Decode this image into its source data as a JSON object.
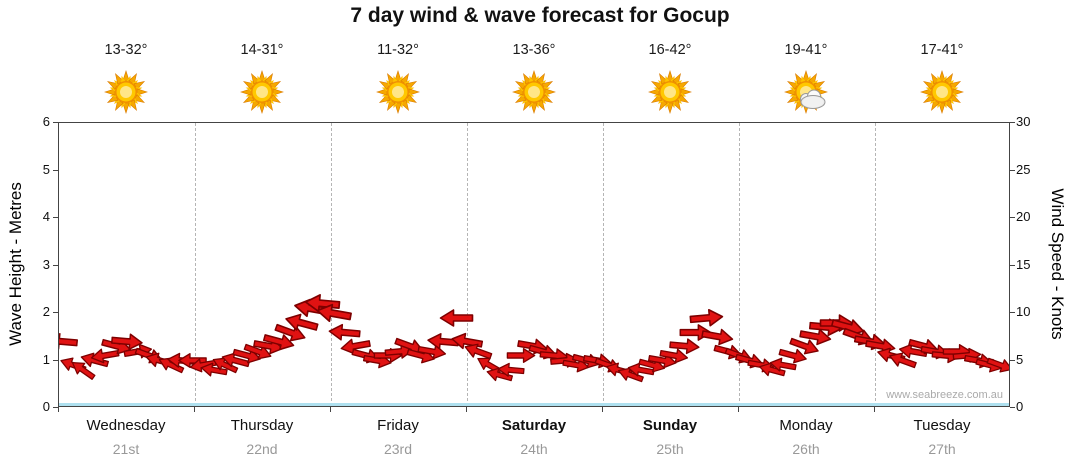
{
  "title": "7 day wind & wave forecast for Gocup",
  "watermark": "www.seabreeze.com.au",
  "left_axis": {
    "label": "Wave Height - Metres",
    "min": 0,
    "max": 6,
    "ticks": [
      0,
      1,
      2,
      3,
      4,
      5,
      6
    ]
  },
  "right_axis": {
    "label": "Wind Speed - Knots",
    "min": 0,
    "max": 30,
    "ticks": [
      0,
      5,
      10,
      15,
      20,
      25,
      30
    ]
  },
  "days": [
    {
      "name": "Wednesday",
      "date": "21st",
      "temp": "13-32°",
      "icon": "sunny",
      "bold": false
    },
    {
      "name": "Thursday",
      "date": "22nd",
      "temp": "14-31°",
      "icon": "sunny",
      "bold": false
    },
    {
      "name": "Friday",
      "date": "23rd",
      "temp": "11-32°",
      "icon": "sunny",
      "bold": false
    },
    {
      "name": "Saturday",
      "date": "24th",
      "temp": "13-36°",
      "icon": "sunny",
      "bold": true
    },
    {
      "name": "Sunday",
      "date": "25th",
      "temp": "16-42°",
      "icon": "sunny",
      "bold": true
    },
    {
      "name": "Monday",
      "date": "26th",
      "temp": "19-41°",
      "icon": "partly-cloudy",
      "bold": false
    },
    {
      "name": "Tuesday",
      "date": "27th",
      "temp": "17-41°",
      "icon": "sunny",
      "bold": false
    }
  ],
  "chart_data": {
    "type": "wind-arrow-time-series",
    "x_unit": "days (0 = start of Wednesday, 7 = end of Tuesday)",
    "y_unit_right": "knots",
    "y_unit_left_equivalent": "metres (left axis 0-6 maps to right axis 0-30)",
    "arrow_fill": "#e01212",
    "arrow_stroke": "#7d0000",
    "grid": "vertical dashed day separators",
    "legend": "none",
    "points_format": "[time_days, wind_speed_knots, direction_deg (0 = pointing right)]",
    "points": [
      [
        0.02,
        7,
        185
      ],
      [
        0.1,
        4.5,
        200
      ],
      [
        0.18,
        4,
        215
      ],
      [
        0.26,
        5,
        195
      ],
      [
        0.34,
        5.5,
        170
      ],
      [
        0.42,
        6.5,
        15
      ],
      [
        0.5,
        7,
        5
      ],
      [
        0.58,
        6,
        350
      ],
      [
        0.66,
        5.5,
        20
      ],
      [
        0.74,
        5,
        195
      ],
      [
        0.82,
        4.5,
        205
      ],
      [
        0.9,
        5,
        185
      ],
      [
        0.98,
        5,
        180
      ],
      [
        1.06,
        4.5,
        170
      ],
      [
        1.14,
        4,
        190
      ],
      [
        1.22,
        4.5,
        205
      ],
      [
        1.3,
        5,
        195
      ],
      [
        1.38,
        5.5,
        15
      ],
      [
        1.46,
        6,
        20
      ],
      [
        1.54,
        6.5,
        10
      ],
      [
        1.62,
        7,
        15
      ],
      [
        1.7,
        8,
        20
      ],
      [
        1.78,
        9,
        195
      ],
      [
        1.86,
        10.5,
        190
      ],
      [
        1.94,
        11,
        185
      ],
      [
        2.02,
        10,
        190
      ],
      [
        2.1,
        8,
        185
      ],
      [
        2.18,
        6.5,
        170
      ],
      [
        2.26,
        5.5,
        15
      ],
      [
        2.34,
        5,
        10
      ],
      [
        2.42,
        5.5,
        0
      ],
      [
        2.5,
        6,
        355
      ],
      [
        2.58,
        6.5,
        20
      ],
      [
        2.66,
        5.5,
        15
      ],
      [
        2.74,
        6,
        10
      ],
      [
        2.82,
        7,
        185
      ],
      [
        2.92,
        9.5,
        180
      ],
      [
        3.0,
        7,
        190
      ],
      [
        3.08,
        6,
        200
      ],
      [
        3.16,
        4.5,
        210
      ],
      [
        3.24,
        3.5,
        195
      ],
      [
        3.32,
        4,
        185
      ],
      [
        3.4,
        5.5,
        0
      ],
      [
        3.48,
        6.5,
        10
      ],
      [
        3.56,
        6,
        15
      ],
      [
        3.64,
        5.5,
        5
      ],
      [
        3.72,
        5,
        355
      ],
      [
        3.8,
        4.5,
        10
      ],
      [
        3.88,
        5,
        15
      ],
      [
        3.96,
        5,
        10
      ],
      [
        4.04,
        4.5,
        20
      ],
      [
        4.12,
        4,
        195
      ],
      [
        4.2,
        3.5,
        200
      ],
      [
        4.28,
        4,
        190
      ],
      [
        4.36,
        4.5,
        15
      ],
      [
        4.44,
        5,
        10
      ],
      [
        4.52,
        5.5,
        10
      ],
      [
        4.6,
        6.5,
        5
      ],
      [
        4.68,
        8,
        0
      ],
      [
        4.76,
        9.5,
        355
      ],
      [
        4.84,
        7.5,
        10
      ],
      [
        4.92,
        6,
        15
      ],
      [
        5.0,
        5.5,
        20
      ],
      [
        5.08,
        5,
        15
      ],
      [
        5.16,
        4.5,
        10
      ],
      [
        5.24,
        4,
        195
      ],
      [
        5.32,
        4.5,
        190
      ],
      [
        5.4,
        5.5,
        15
      ],
      [
        5.48,
        6.5,
        20
      ],
      [
        5.56,
        7.5,
        10
      ],
      [
        5.64,
        8.5,
        5
      ],
      [
        5.72,
        9,
        0
      ],
      [
        5.8,
        8.5,
        15
      ],
      [
        5.88,
        7.5,
        20
      ],
      [
        5.96,
        7,
        10
      ],
      [
        6.04,
        6.5,
        10
      ],
      [
        6.12,
        5.5,
        195
      ],
      [
        6.2,
        5,
        200
      ],
      [
        6.28,
        6,
        190
      ],
      [
        6.36,
        6.5,
        15
      ],
      [
        6.44,
        6,
        10
      ],
      [
        6.52,
        5.5,
        5
      ],
      [
        6.6,
        6,
        0
      ],
      [
        6.68,
        5.5,
        355
      ],
      [
        6.76,
        5,
        10
      ],
      [
        6.84,
        4.5,
        15
      ],
      [
        6.92,
        4.5,
        20
      ]
    ]
  }
}
